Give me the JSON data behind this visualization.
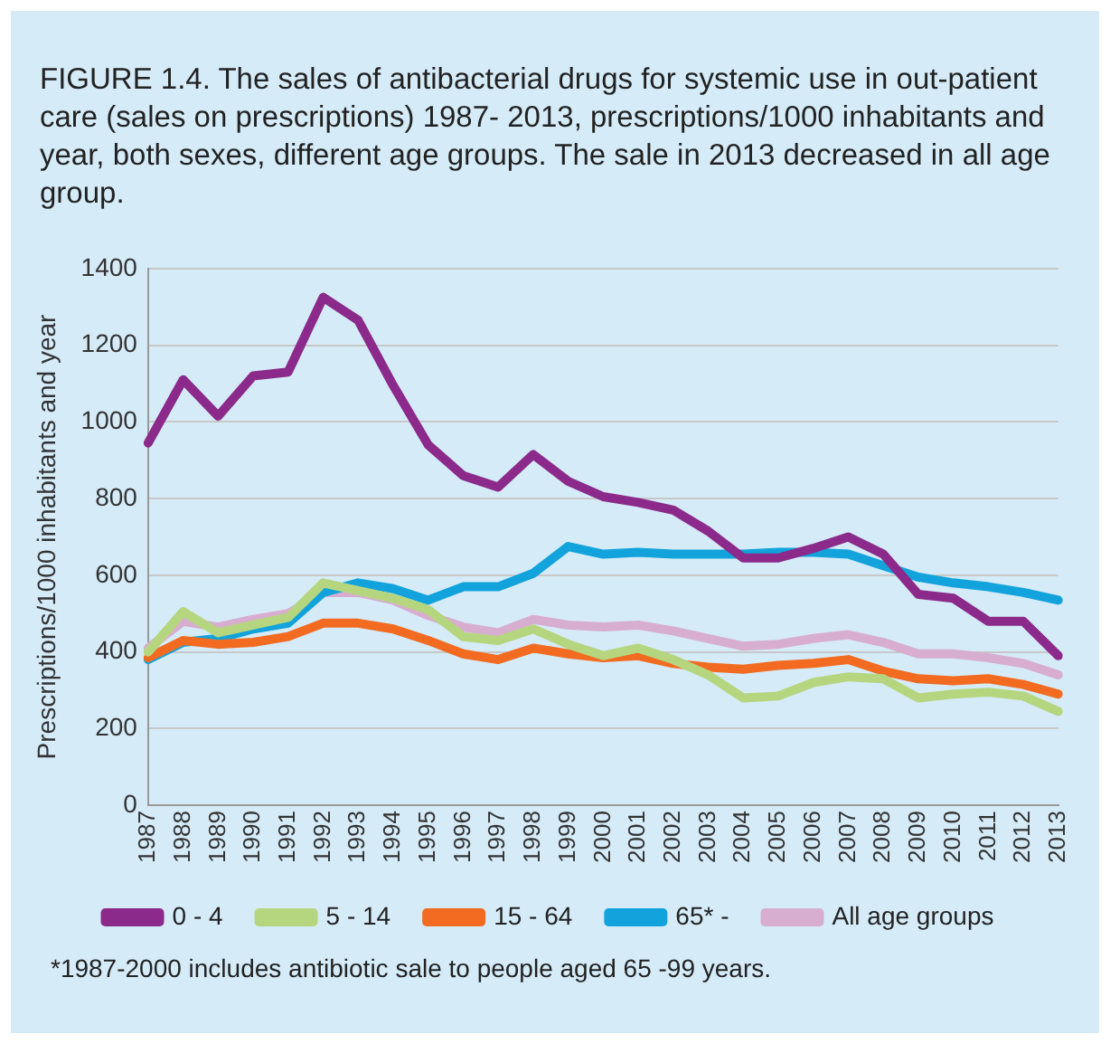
{
  "chart_data": {
    "type": "line",
    "title": "FIGURE 1.4. The sales of antibacterial drugs for systemic use in out-patient care (sales on prescriptions) 1987- 2013, prescriptions/1000 inhabitants and year, both sexes, different age groups. The sale in 2013 decreased in all age group.",
    "ylabel": "Prescriptions/1000 inhabitants and year",
    "categories": [
      "1987",
      "1988",
      "1989",
      "1990",
      "1991",
      "1992",
      "1993",
      "1994",
      "1995",
      "1996",
      "1997",
      "1998",
      "1999",
      "2000",
      "2001",
      "2002",
      "2003",
      "2004",
      "2005",
      "2006",
      "2007",
      "2008",
      "2009",
      "2010",
      "2011",
      "2012",
      "2013"
    ],
    "series": [
      {
        "name": "0 - 4",
        "color": "#8b2a8a",
        "values": [
          945,
          1110,
          1015,
          1120,
          1130,
          1325,
          1265,
          1095,
          940,
          860,
          830,
          915,
          845,
          805,
          790,
          770,
          715,
          645,
          645,
          670,
          700,
          655,
          550,
          540,
          480,
          480,
          390
        ]
      },
      {
        "name": "5 - 14",
        "color": "#b5d67f",
        "values": [
          400,
          505,
          450,
          470,
          490,
          580,
          560,
          540,
          510,
          440,
          430,
          460,
          420,
          390,
          410,
          380,
          340,
          280,
          285,
          320,
          335,
          330,
          280,
          290,
          295,
          285,
          245
        ]
      },
      {
        "name": "15 - 64",
        "color": "#f26b21",
        "values": [
          385,
          430,
          420,
          425,
          440,
          475,
          475,
          460,
          430,
          395,
          380,
          410,
          395,
          385,
          390,
          370,
          360,
          355,
          365,
          370,
          380,
          350,
          330,
          325,
          330,
          315,
          290
        ]
      },
      {
        "name": "65* -",
        "color": "#12a3dc",
        "values": [
          380,
          425,
          435,
          460,
          475,
          555,
          580,
          565,
          535,
          570,
          570,
          605,
          675,
          655,
          660,
          655,
          655,
          655,
          660,
          660,
          655,
          625,
          595,
          580,
          570,
          555,
          535
        ]
      },
      {
        "name": "All age groups",
        "color": "#d8aed0",
        "values": [
          410,
          480,
          465,
          485,
          500,
          555,
          555,
          535,
          495,
          465,
          450,
          485,
          470,
          465,
          470,
          455,
          435,
          415,
          420,
          435,
          445,
          425,
          395,
          395,
          385,
          370,
          340
        ]
      }
    ],
    "ylim": [
      0,
      1400
    ],
    "yticks": [
      0,
      200,
      400,
      600,
      800,
      1000,
      1200,
      1400
    ],
    "grid": "y",
    "legend": "bottom",
    "marker": "none",
    "line_style": "solid",
    "annotations": [
      "*1987-2000 includes antibiotic sale to people  aged 65 -99 years."
    ]
  }
}
